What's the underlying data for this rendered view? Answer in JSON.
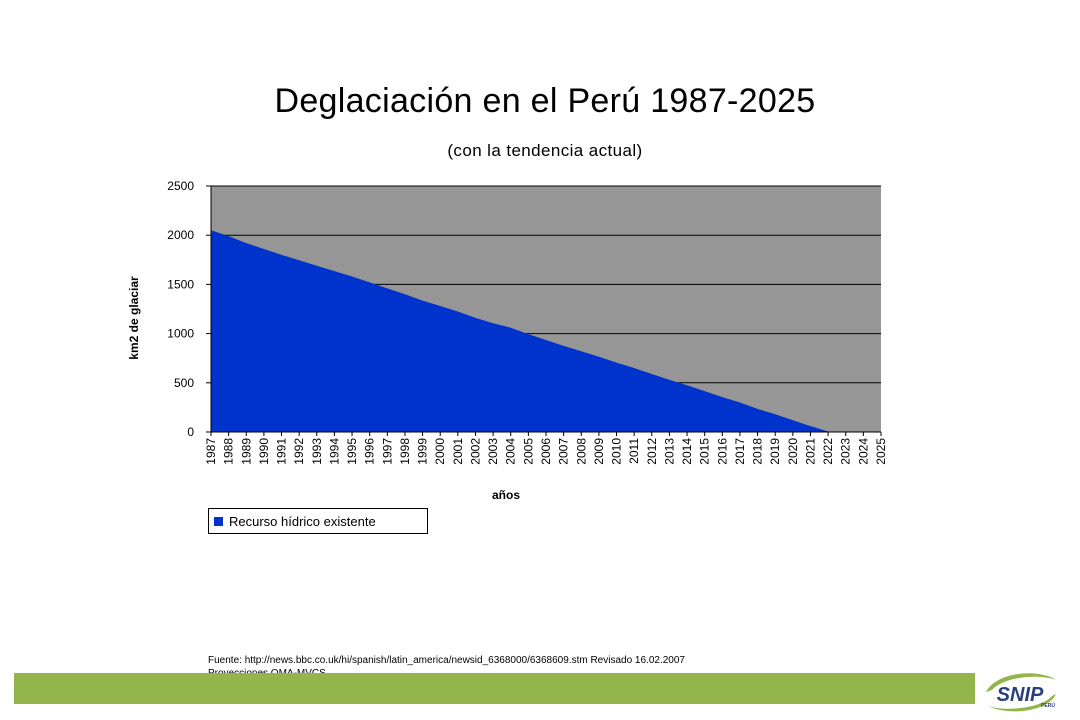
{
  "chart_data": {
    "type": "area",
    "title": "Deglaciación  en el Perú 1987-2025",
    "subtitle": "(con la tendencia actual)",
    "xlabel": "años",
    "ylabel": "km2 de glaciar",
    "ylim": [
      0,
      2500
    ],
    "yticks": [
      0,
      500,
      1000,
      1500,
      2000,
      2500
    ],
    "grid": true,
    "legend_position": "bottom-left",
    "plot_background": "#969696",
    "categories": [
      "1987",
      "1988",
      "1989",
      "1990",
      "1991",
      "1992",
      "1993",
      "1994",
      "1995",
      "1996",
      "1997",
      "1998",
      "1999",
      "2000",
      "2001",
      "2002",
      "2003",
      "2004",
      "2005",
      "2006",
      "2007",
      "2008",
      "2009",
      "2010",
      "2011",
      "2012",
      "2013",
      "2014",
      "2015",
      "2016",
      "2017",
      "2018",
      "2019",
      "2020",
      "2021",
      "2022",
      "2023",
      "2024",
      "2025"
    ],
    "series": [
      {
        "name": "Recurso hídrico existente",
        "color": "#0033cc",
        "values": [
          2050,
          1990,
          1920,
          1860,
          1800,
          1745,
          1690,
          1635,
          1580,
          1520,
          1460,
          1400,
          1335,
          1280,
          1225,
          1160,
          1105,
          1060,
          995,
          935,
          875,
          820,
          765,
          705,
          650,
          590,
          530,
          475,
          415,
          355,
          300,
          235,
          180,
          120,
          60,
          5,
          0,
          0,
          0
        ]
      }
    ]
  },
  "source_note": {
    "line1": "Fuente: http://news.bbc.co.uk/hi/spanish/latin_america/newsid_6368000/6368609.stm Revisado 16.02.2007",
    "line2": "Proyecciones OMA-MVCS"
  },
  "logo": {
    "text": "SNIP",
    "subtext": "PERÚ",
    "accent_color": "#93b54b"
  }
}
